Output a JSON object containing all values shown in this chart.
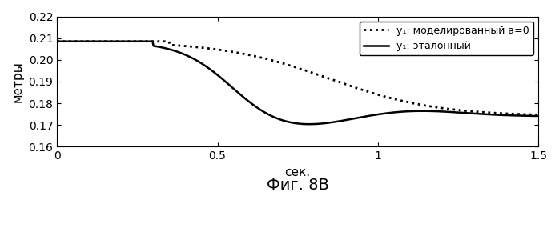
{
  "title": "Фиг. 8В",
  "xlabel": "сек.",
  "ylabel": "метры",
  "xlim": [
    0,
    1.5
  ],
  "ylim": [
    0.16,
    0.22
  ],
  "yticks": [
    0.16,
    0.17,
    0.18,
    0.19,
    0.2,
    0.21,
    0.22
  ],
  "xticks": [
    0,
    0.5,
    1.0,
    1.5
  ],
  "legend_dotted": "y₁: моделированный a=0",
  "legend_solid": "y₁: эталонный",
  "bg_color": "#ffffff",
  "line_color": "#000000"
}
